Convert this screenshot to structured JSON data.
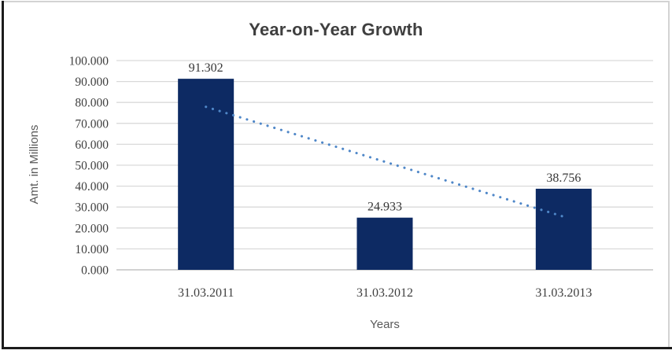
{
  "chart_data": {
    "type": "bar",
    "title": "Year-on-Year Growth",
    "xlabel": "Years",
    "ylabel": "Amt. in Millions",
    "categories": [
      "31.03.2011",
      "31.03.2012",
      "31.03.2013"
    ],
    "values": [
      91.302,
      24.933,
      38.756
    ],
    "data_labels": [
      "91.302",
      "24.933",
      "38.756"
    ],
    "y_ticks": [
      "100.000",
      "90.000",
      "80.000",
      "70.000",
      "60.000",
      "50.000",
      "40.000",
      "30.000",
      "20.000",
      "10.000",
      "0.000"
    ],
    "ylim": [
      0,
      100
    ],
    "grid": true,
    "legend": "none",
    "colors": {
      "bar": "#0d2a63",
      "trendline": "#4f87c8",
      "gridline": "#d9d9d9",
      "axis_line": "#c4c4c4",
      "tick_label": "#3f3f3f",
      "data_label": "#363636",
      "frame_dark": "#1c1c1c",
      "frame_light": "#d3d3d3"
    },
    "trendline": {
      "kind": "linear",
      "style": "dotted",
      "start_value": 77.9,
      "end_value": 25.4
    }
  }
}
